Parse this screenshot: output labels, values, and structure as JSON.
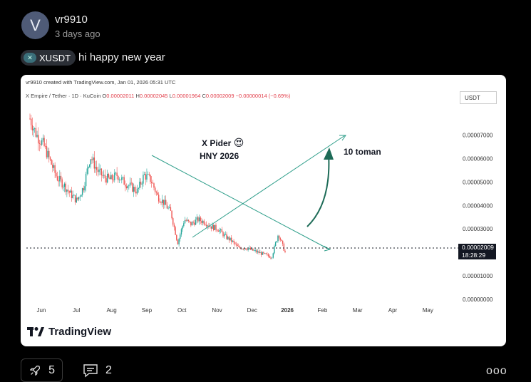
{
  "post": {
    "avatar_letter": "V",
    "username": "vr9910",
    "time": "3 days ago",
    "ticker": "XUSDT",
    "ticker_icon": "x-empire-coin-icon",
    "text": "hi happy new year"
  },
  "chart_card": {
    "credit": "vr9910 created with TradingView.com, Jan 01, 2026 05:31 UTC",
    "symbol": "X Empire / Tether · 1D · KuCoin",
    "ohlc": {
      "o_label": "O",
      "o": "0.00002011",
      "h_label": "H",
      "h": "0.00002045",
      "l_label": "L",
      "l": "0.00001964",
      "c_label": "C",
      "c": "0.00002009",
      "change": "−0.00000014 (−0.69%)"
    },
    "currency_box": "USDT",
    "last_price": "0.00002009",
    "countdown": "18:28:29",
    "annotations": {
      "line1": "X Pider",
      "emoji": "😍",
      "line2": "HNY 2026",
      "target": "10 toman"
    },
    "branding": "TradingView",
    "colors": {
      "up": "#26a69a",
      "down": "#ef5350",
      "trendline": "#2e9e8a",
      "arrow": "#1d6b57"
    }
  },
  "chart_data": {
    "type": "candlestick",
    "y_axis_labels": [
      "0.00007000",
      "0.00006000",
      "0.00005000",
      "0.00004000",
      "0.00003000",
      "0.00001000",
      "0.00000000"
    ],
    "x_axis_labels": [
      "Jun",
      "Jul",
      "Aug",
      "Sep",
      "Oct",
      "Nov",
      "Dec",
      "2026",
      "Feb",
      "Mar",
      "Apr",
      "May"
    ],
    "ylim": [
      0,
      8.2e-05
    ],
    "close_path": [
      7.7e-05,
      7e-05,
      6.6e-05,
      5.9e-05,
      5.2e-05,
      4.9e-05,
      4.5e-05,
      4.2e-05,
      4.8e-05,
      6.1e-05,
      5.5e-05,
      5.2e-05,
      5.1e-05,
      5.3e-05,
      5e-05,
      4.8e-05,
      4.6e-05,
      5.3e-05,
      5.1e-05,
      4.4e-05,
      4.1e-05,
      3.7e-05,
      2.4e-05,
      3.4e-05,
      3.2e-05,
      3.4e-05,
      3.3e-05,
      3.1e-05,
      3e-05,
      2.7e-05,
      2.5e-05,
      2.2e-05,
      2.2e-05,
      2.1e-05,
      2e-05,
      1.9e-05,
      1.8e-05,
      2.8e-05,
      2e-05
    ]
  },
  "footer": {
    "boosts": "5",
    "comments": "2",
    "rocket_icon": "rocket-icon",
    "comment_icon": "comment-icon",
    "more_icon": "more-options-icon",
    "more_glyph": "ooo"
  }
}
